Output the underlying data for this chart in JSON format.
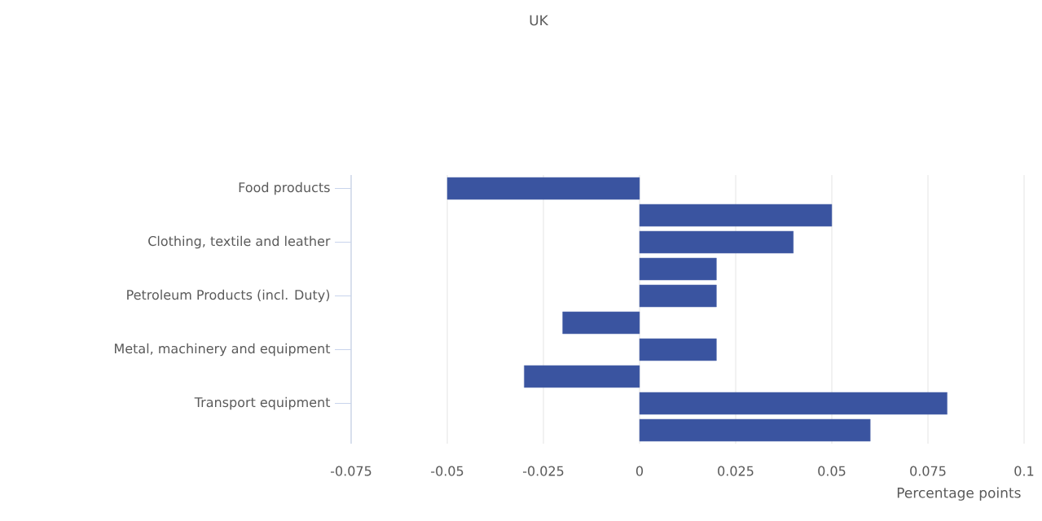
{
  "chart_data": {
    "type": "bar",
    "orientation": "horizontal",
    "title": "UK",
    "xlabel": "Percentage points",
    "categories": [
      "Food products",
      null,
      "Clothing, textile and leather",
      null,
      "Petroleum Products (incl. Duty)",
      null,
      "Metal, machinery and equipment",
      null,
      "Transport equipment",
      null
    ],
    "values": [
      -0.05,
      0.05,
      0.04,
      0.02,
      0.02,
      -0.02,
      0.02,
      -0.03,
      0.08,
      0.06
    ],
    "color": "#3a54a0",
    "xlim": [
      -0.075,
      0.1
    ],
    "xticks": [
      -0.075,
      -0.05,
      -0.025,
      0,
      0.025,
      0.05,
      0.075,
      0.1
    ],
    "grid": "x"
  }
}
